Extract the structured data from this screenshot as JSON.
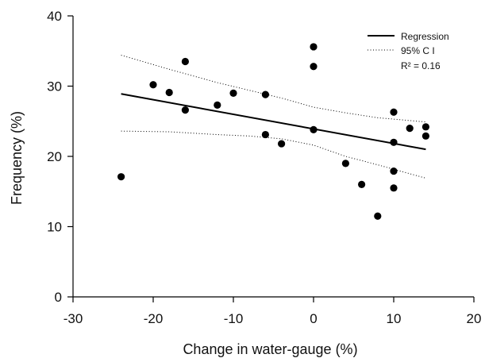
{
  "chart_data": {
    "type": "scatter",
    "title": "",
    "xlabel": "Change in water-gauge (%)",
    "ylabel": "Frequency (%)",
    "xlim": [
      -30,
      20
    ],
    "ylim": [
      0,
      40
    ],
    "x_ticks": [
      -30,
      -20,
      -10,
      0,
      10,
      20
    ],
    "y_ticks": [
      0,
      10,
      20,
      30,
      40
    ],
    "x_tick_labels": [
      "-30",
      "-20",
      "-10",
      "0",
      "10",
      "20"
    ],
    "y_tick_labels": [
      "0",
      "10",
      "20",
      "30",
      "40"
    ],
    "grid": false,
    "legend_position": "top-right",
    "series": [
      {
        "name": "",
        "kind": "points",
        "color": "#000000",
        "x": [
          -24,
          -20,
          -18,
          -16,
          -16,
          -12,
          -10,
          -6,
          -6,
          -4,
          0,
          0,
          0,
          4,
          6,
          8,
          10,
          10,
          10,
          10,
          12,
          14,
          14
        ],
        "y": [
          17.1,
          30.2,
          29.1,
          33.5,
          26.6,
          27.3,
          29.0,
          28.8,
          23.1,
          21.8,
          35.6,
          32.8,
          23.8,
          19.0,
          16.0,
          11.5,
          26.3,
          22.0,
          17.9,
          15.5,
          24.0,
          24.2,
          22.9
        ]
      },
      {
        "name": "Regression",
        "kind": "line",
        "style": "solid",
        "color": "#000000",
        "x": [
          -24,
          14
        ],
        "y": [
          28.9,
          21.0
        ]
      },
      {
        "name": "95% C I",
        "kind": "line",
        "style": "dotted",
        "color": "#000000",
        "x": [
          -24,
          -18,
          -12,
          -8,
          -4,
          0,
          4,
          8,
          14
        ],
        "y": [
          34.4,
          32.4,
          30.5,
          29.4,
          28.3,
          27.0,
          26.2,
          25.5,
          24.9
        ]
      },
      {
        "name": "",
        "kind": "line",
        "style": "dotted",
        "color": "#000000",
        "x": [
          -24,
          -18,
          -12,
          -8,
          -4,
          0,
          4,
          8,
          14
        ],
        "y": [
          23.6,
          23.5,
          23.1,
          22.9,
          22.5,
          21.6,
          20.0,
          18.8,
          16.9
        ]
      }
    ],
    "annotation": "R² = 0.16"
  }
}
